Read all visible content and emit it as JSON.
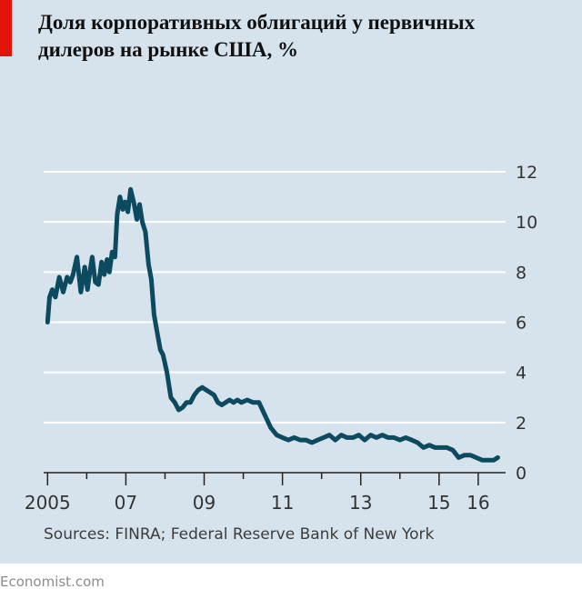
{
  "title": "Доля корпоративных облигаций у первичных дилеров на рынке США, %",
  "source": "Sources: FINRA; Federal Reserve Bank of New York",
  "footer": "Economist.com",
  "colors": {
    "background": "#d6e3ec",
    "accent_red": "#e3120b",
    "line": "#0c4a5f",
    "grid": "#ffffff",
    "axis": "#222222"
  },
  "chart_data": {
    "type": "line",
    "title": "Доля корпоративных облигаций у первичных дилеров на рынке США, %",
    "xlabel": "",
    "ylabel": "",
    "xlim": [
      2004.9,
      2016.7
    ],
    "ylim": [
      0,
      12
    ],
    "yticks": [
      0,
      2,
      4,
      6,
      8,
      10,
      12
    ],
    "ytick_labels": [
      "0",
      "2",
      "4",
      "6",
      "8",
      "10",
      "12"
    ],
    "xticks": [
      2005,
      2007,
      2009,
      2011,
      2013,
      2015,
      2016
    ],
    "xtick_labels": [
      "2005",
      "07",
      "09",
      "11",
      "13",
      "15",
      "16"
    ],
    "x_minor_ticks": [
      2006,
      2008,
      2010,
      2012,
      2014
    ],
    "y_axis_side": "right",
    "grid": true,
    "series": [
      {
        "x": [
          2005.0,
          2005.05,
          2005.12,
          2005.2,
          2005.3,
          2005.4,
          2005.5,
          2005.58,
          2005.65,
          2005.75,
          2005.85,
          2005.95,
          2006.02,
          2006.08,
          2006.14,
          2006.22,
          2006.3,
          2006.38,
          2006.45,
          2006.52,
          2006.58,
          2006.65,
          2006.72,
          2006.78,
          2006.85,
          2006.92,
          2006.98,
          2007.05,
          2007.12,
          2007.2,
          2007.28,
          2007.35,
          2007.42,
          2007.5,
          2007.58,
          2007.65,
          2007.72,
          2007.8,
          2007.88,
          2007.95,
          2008.05,
          2008.15,
          2008.25,
          2008.35,
          2008.45,
          2008.55,
          2008.65,
          2008.75,
          2008.85,
          2008.95,
          2009.05,
          2009.15,
          2009.25,
          2009.35,
          2009.45,
          2009.55,
          2009.65,
          2009.75,
          2009.85,
          2009.95,
          2010.1,
          2010.25,
          2010.4,
          2010.55,
          2010.7,
          2010.85,
          2011.0,
          2011.15,
          2011.3,
          2011.45,
          2011.6,
          2011.75,
          2011.9,
          2012.05,
          2012.2,
          2012.35,
          2012.5,
          2012.65,
          2012.8,
          2012.95,
          2013.1,
          2013.25,
          2013.4,
          2013.55,
          2013.7,
          2013.85,
          2014.0,
          2014.15,
          2014.3,
          2014.45,
          2014.6,
          2014.75,
          2014.9,
          2015.05,
          2015.2,
          2015.35,
          2015.5,
          2015.65,
          2015.8,
          2015.95,
          2016.1,
          2016.25,
          2016.4,
          2016.5
        ],
        "y": [
          6.0,
          7.0,
          7.3,
          7.0,
          7.8,
          7.2,
          7.8,
          7.6,
          7.9,
          8.6,
          7.2,
          8.2,
          7.3,
          8.0,
          8.6,
          7.6,
          7.5,
          8.4,
          7.9,
          8.5,
          8.0,
          8.8,
          8.6,
          10.3,
          11.0,
          10.5,
          10.8,
          10.4,
          11.3,
          10.8,
          10.1,
          10.7,
          10.0,
          9.6,
          8.3,
          7.7,
          6.3,
          5.6,
          4.9,
          4.7,
          4.0,
          3.0,
          2.8,
          2.5,
          2.6,
          2.8,
          2.8,
          3.1,
          3.3,
          3.4,
          3.3,
          3.2,
          3.1,
          2.8,
          2.7,
          2.8,
          2.9,
          2.8,
          2.9,
          2.8,
          2.9,
          2.8,
          2.8,
          2.3,
          1.8,
          1.5,
          1.4,
          1.3,
          1.4,
          1.3,
          1.3,
          1.2,
          1.3,
          1.4,
          1.5,
          1.3,
          1.5,
          1.4,
          1.4,
          1.5,
          1.3,
          1.5,
          1.4,
          1.5,
          1.4,
          1.4,
          1.3,
          1.4,
          1.3,
          1.2,
          1.0,
          1.1,
          1.0,
          1.0,
          1.0,
          0.9,
          0.6,
          0.7,
          0.7,
          0.6,
          0.5,
          0.5,
          0.5,
          0.6
        ]
      }
    ]
  }
}
